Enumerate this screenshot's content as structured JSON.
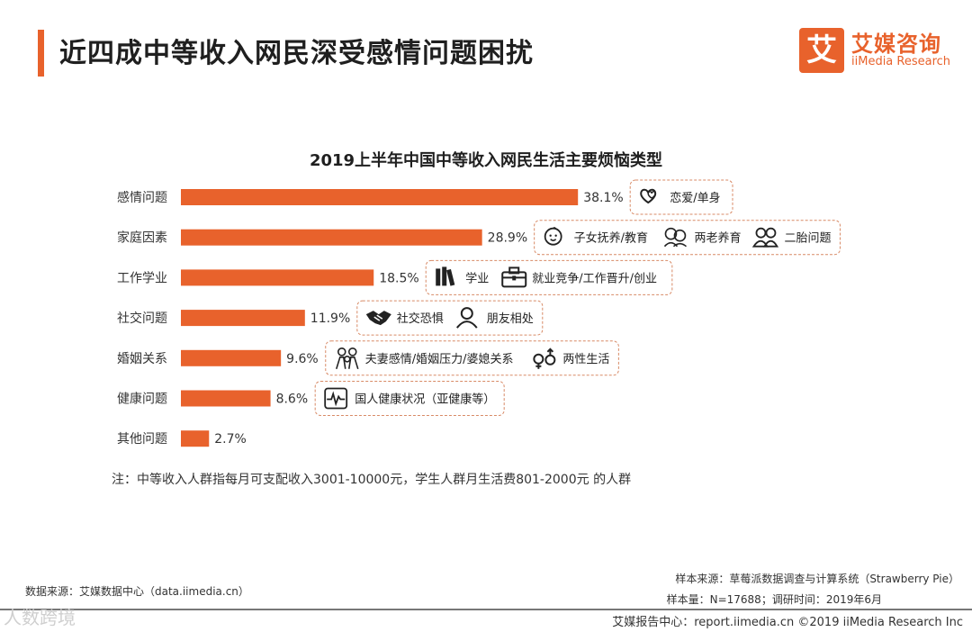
{
  "header": {
    "title": "近四成中等收入网民深受感情问题困扰",
    "accent_color": "#e8622c"
  },
  "logo": {
    "mark": "艾",
    "cn": "艾媒咨询",
    "en": "iiMedia Research"
  },
  "chart_data": {
    "type": "bar",
    "orientation": "horizontal",
    "title": "2019上半年中国中等收入网民生活主要烦恼类型",
    "categories": [
      "感情问题",
      "家庭因素",
      "工作学业",
      "社交问题",
      "婚姻关系",
      "健康问题",
      "其他问题"
    ],
    "values": [
      38.1,
      28.9,
      18.5,
      11.9,
      9.6,
      8.6,
      2.7
    ],
    "value_labels": [
      "38.1%",
      "28.9%",
      "18.5%",
      "11.9%",
      "9.6%",
      "8.6%",
      "2.7%"
    ],
    "bar_color": "#e8622c",
    "xlim": [
      0,
      40
    ],
    "grid": false,
    "legend": "none",
    "annotations": [
      {
        "category": "感情问题",
        "items": [
          {
            "icon": "heart-icon",
            "label": "恋爱/单身"
          }
        ]
      },
      {
        "category": "家庭因素",
        "items": [
          {
            "icon": "baby-face-icon",
            "label": "子女抚养/教育"
          },
          {
            "icon": "elderly-couple-icon",
            "label": "两老养育"
          },
          {
            "icon": "two-people-icon",
            "label": "二胎问题"
          }
        ]
      },
      {
        "category": "工作学业",
        "items": [
          {
            "icon": "books-icon",
            "label": "学业"
          },
          {
            "icon": "briefcase-icon",
            "label": "就业竞争/工作晋升/创业"
          }
        ]
      },
      {
        "category": "社交问题",
        "items": [
          {
            "icon": "handshake-icon",
            "label": "社交恐惧"
          },
          {
            "icon": "friends-icon",
            "label": "朋友相处"
          }
        ]
      },
      {
        "category": "婚姻关系",
        "items": [
          {
            "icon": "family-icon",
            "label": "夫妻感情/婚姻压力/婆媳关系"
          },
          {
            "icon": "gender-icon",
            "label": "两性生活"
          }
        ]
      },
      {
        "category": "健康问题",
        "items": [
          {
            "icon": "heartbeat-icon",
            "label": "国人健康状况（亚健康等）"
          }
        ]
      }
    ]
  },
  "note": "注：中等收入人群指每月可支配收入3001-10000元，学生人群月生活费801-2000元 的人群",
  "sources": {
    "data_source": "数据来源：艾媒数据中心（data.iimedia.cn）",
    "sample_source": "样本来源：草莓派数据调查与计算系统（Strawberry Pie）",
    "sample_size": "样本量：N=17688；调研时间：2019年6月"
  },
  "footer": {
    "report_center": "艾媒报告中心：report.iimedia.cn ©2019 iiMedia Research Inc",
    "watermark": "人数跨境"
  }
}
